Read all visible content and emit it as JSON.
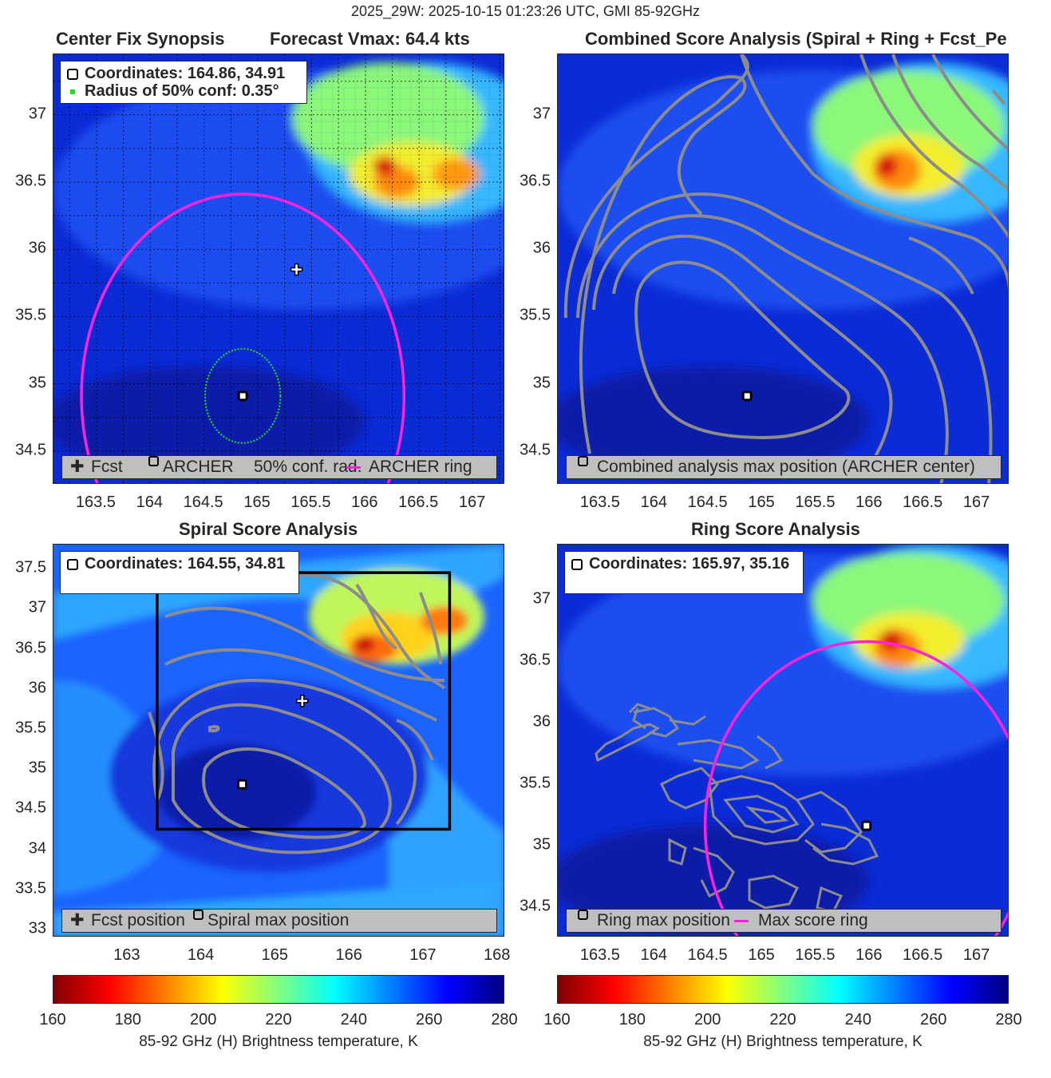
{
  "figure": {
    "suptitle": "2025_29W: 2025-10-15 01:23:26 UTC, GMI 85-92GHz"
  },
  "colors": {
    "fcst_ring": "#ff22dd",
    "conf_circle": "#22dd22",
    "contour": "#8c8c8c",
    "legend_bg": "#bfbfbf"
  },
  "colorbar": {
    "ticks": [
      "160",
      "180",
      "200",
      "220",
      "240",
      "260",
      "280"
    ],
    "label": "85-92 GHz (H) Brightness temperature, K",
    "cmap": "jet_reversed",
    "range": [
      160,
      280
    ]
  },
  "panels": [
    {
      "title_left": "Center Fix Synopsis",
      "title_right": "Forecast Vmax: 64.4 kts",
      "info_lines": [
        "Coordinates: 164.86, 34.91",
        "Radius of 50% conf: 0.35°"
      ],
      "legend": [
        "Fcst",
        "ARCHER",
        "50% conf. rad.",
        "ARCHER ring"
      ],
      "x_ticks": [
        "163.5",
        "164",
        "164.5",
        "165",
        "165.5",
        "166",
        "166.5",
        "167"
      ],
      "y_ticks": [
        "34.5",
        "35",
        "35.5",
        "36",
        "36.5",
        "37"
      ]
    },
    {
      "title": "Combined Score Analysis (Spiral + Ring + Fcst_Pe",
      "legend": [
        "Combined analysis max position (ARCHER center)"
      ],
      "x_ticks": [
        "163.5",
        "164",
        "164.5",
        "165",
        "165.5",
        "166",
        "166.5",
        "167"
      ],
      "y_ticks": [
        "34.5",
        "35",
        "35.5",
        "36",
        "36.5",
        "37"
      ]
    },
    {
      "title": "Spiral Score Analysis",
      "info_lines": [
        "Coordinates: 164.55, 34.81"
      ],
      "legend": [
        "Fcst position",
        "Spiral max position"
      ],
      "x_ticks": [
        "163",
        "164",
        "165",
        "166",
        "167",
        "168"
      ],
      "y_ticks": [
        "33",
        "33.5",
        "34",
        "34.5",
        "35",
        "35.5",
        "36",
        "36.5",
        "37",
        "37.5"
      ]
    },
    {
      "title": "Ring Score Analysis",
      "info_lines": [
        "Coordinates: 165.97, 35.16"
      ],
      "legend": [
        "Ring max position",
        "Max score ring"
      ],
      "x_ticks": [
        "163.5",
        "164",
        "164.5",
        "165",
        "165.5",
        "166",
        "166.5",
        "167"
      ],
      "y_ticks": [
        "34.5",
        "35",
        "35.5",
        "36",
        "36.5",
        "37"
      ]
    }
  ],
  "chart_data": [
    {
      "type": "heatmap",
      "title": "Center Fix Synopsis",
      "subtitle": "Forecast Vmax: 64.4 kts",
      "xlim": [
        163.1,
        167.3
      ],
      "ylim": [
        34.25,
        37.45
      ],
      "grid": true,
      "legend_position": "bottom",
      "points": [
        {
          "name": "Fcst",
          "x": 165.36,
          "y": 35.85
        },
        {
          "name": "ARCHER",
          "x": 164.86,
          "y": 34.91
        }
      ],
      "circles": [
        {
          "name": "50% conf. rad.",
          "cx": 164.86,
          "cy": 34.91,
          "r": 0.35
        },
        {
          "name": "ARCHER ring",
          "cx": 164.86,
          "cy": 34.91,
          "r": 1.5
        }
      ],
      "cold_cloud_cores": [
        {
          "x": 166.3,
          "y": 36.7,
          "rx": 0.5,
          "ry": 0.4,
          "min_k": 180
        },
        {
          "x": 166.0,
          "y": 37.1,
          "rx": 0.7,
          "ry": 0.45,
          "min_k": 200
        },
        {
          "x": 167.0,
          "y": 36.7,
          "rx": 0.4,
          "ry": 0.3,
          "min_k": 195
        }
      ]
    },
    {
      "type": "heatmap",
      "title": "Combined Score Analysis (Spiral + Ring + Fcst_Pe",
      "xlim": [
        163.1,
        167.3
      ],
      "ylim": [
        34.25,
        37.45
      ],
      "grid": false,
      "legend_position": "bottom",
      "points": [
        {
          "name": "Combined analysis max position (ARCHER center)",
          "x": 164.86,
          "y": 34.91
        }
      ]
    },
    {
      "type": "heatmap",
      "title": "Spiral Score Analysis",
      "xlim": [
        162.0,
        168.1
      ],
      "ylim": [
        32.9,
        37.8
      ],
      "grid": false,
      "legend_position": "bottom",
      "points": [
        {
          "name": "Fcst position",
          "x": 165.36,
          "y": 35.85
        },
        {
          "name": "Spiral max position",
          "x": 164.55,
          "y": 34.81
        }
      ],
      "search_box": {
        "x0": 163.4,
        "x1": 167.35,
        "y0": 34.25,
        "y1": 37.45
      }
    },
    {
      "type": "heatmap",
      "title": "Ring Score Analysis",
      "xlim": [
        163.1,
        167.3
      ],
      "ylim": [
        34.25,
        37.45
      ],
      "grid": false,
      "legend_position": "bottom",
      "points": [
        {
          "name": "Ring max position",
          "x": 165.97,
          "y": 35.16
        }
      ],
      "circles": [
        {
          "name": "Max score ring",
          "cx": 165.97,
          "cy": 35.16,
          "r": 1.5
        }
      ]
    }
  ]
}
